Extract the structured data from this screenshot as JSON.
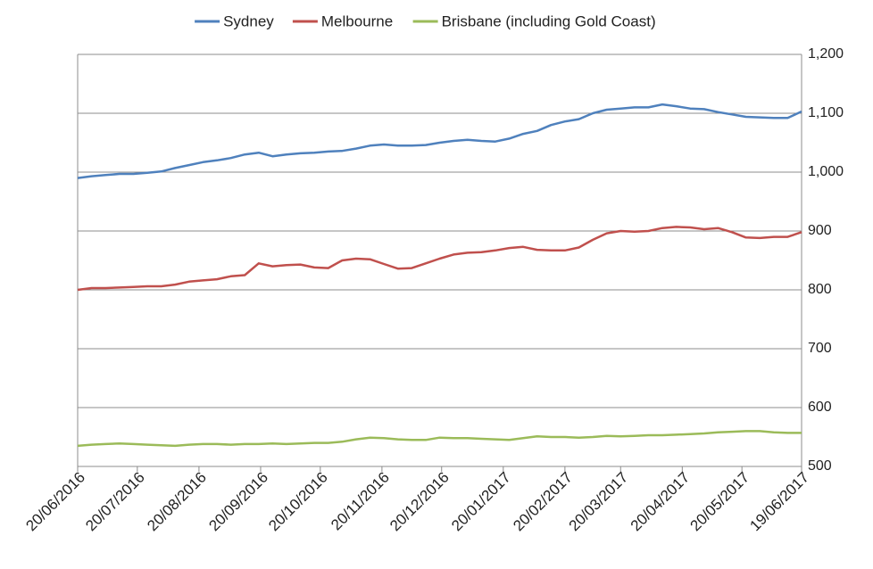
{
  "chart_data": {
    "type": "line",
    "x": [
      "20/06/2016",
      "27/06/2016",
      "04/07/2016",
      "11/07/2016",
      "18/07/2016",
      "25/07/2016",
      "01/08/2016",
      "08/08/2016",
      "15/08/2016",
      "22/08/2016",
      "29/08/2016",
      "05/09/2016",
      "12/09/2016",
      "19/09/2016",
      "26/09/2016",
      "03/10/2016",
      "10/10/2016",
      "17/10/2016",
      "24/10/2016",
      "31/10/2016",
      "07/11/2016",
      "14/11/2016",
      "21/11/2016",
      "28/11/2016",
      "05/12/2016",
      "12/12/2016",
      "19/12/2016",
      "26/12/2016",
      "02/01/2017",
      "09/01/2017",
      "16/01/2017",
      "23/01/2017",
      "30/01/2017",
      "06/02/2017",
      "13/02/2017",
      "20/02/2017",
      "27/02/2017",
      "06/03/2017",
      "13/03/2017",
      "20/03/2017",
      "27/03/2017",
      "03/04/2017",
      "10/04/2017",
      "17/04/2017",
      "24/04/2017",
      "01/05/2017",
      "08/05/2017",
      "15/05/2017",
      "22/05/2017",
      "29/05/2017",
      "05/06/2017",
      "12/06/2017",
      "19/06/2017"
    ],
    "series": [
      {
        "name": "Sydney",
        "color": "#4f81bd",
        "values": [
          990,
          993,
          995,
          997,
          997,
          999,
          1001,
          1007,
          1012,
          1017,
          1020,
          1024,
          1030,
          1033,
          1027,
          1030,
          1032,
          1033,
          1035,
          1036,
          1040,
          1045,
          1047,
          1045,
          1045,
          1046,
          1050,
          1053,
          1055,
          1053,
          1052,
          1057,
          1065,
          1070,
          1080,
          1086,
          1090,
          1100,
          1106,
          1108,
          1110,
          1110,
          1115,
          1112,
          1108,
          1107,
          1102,
          1098,
          1094,
          1093,
          1092,
          1092,
          1103
        ]
      },
      {
        "name": "Melbourne",
        "color": "#c0504d",
        "values": [
          800,
          803,
          803,
          804,
          805,
          806,
          806,
          809,
          814,
          816,
          818,
          823,
          825,
          845,
          840,
          842,
          843,
          838,
          837,
          850,
          853,
          852,
          844,
          836,
          837,
          845,
          853,
          860,
          863,
          864,
          867,
          871,
          873,
          868,
          867,
          867,
          872,
          885,
          896,
          900,
          899,
          900,
          905,
          907,
          906,
          903,
          905,
          898,
          889,
          888,
          890,
          890,
          898
        ]
      },
      {
        "name": "Brisbane (including Gold Coast)",
        "color": "#9bbb59",
        "values": [
          535,
          537,
          538,
          539,
          538,
          537,
          536,
          535,
          537,
          538,
          538,
          537,
          538,
          538,
          539,
          538,
          539,
          540,
          540,
          542,
          546,
          549,
          548,
          546,
          545,
          545,
          549,
          548,
          548,
          547,
          546,
          545,
          548,
          551,
          550,
          550,
          549,
          550,
          552,
          551,
          552,
          553,
          553,
          554,
          555,
          556,
          558,
          559,
          560,
          560,
          558,
          557,
          557
        ]
      }
    ],
    "xlim": [
      "20/06/2016",
      "19/06/2017"
    ],
    "xticks": [
      "20/06/2016",
      "20/07/2016",
      "20/08/2016",
      "20/09/2016",
      "20/10/2016",
      "20/11/2016",
      "20/12/2016",
      "20/01/2017",
      "20/02/2017",
      "20/03/2017",
      "20/04/2017",
      "20/05/2017",
      "19/06/2017"
    ],
    "ylim": [
      500,
      1200
    ],
    "yticks": [
      500,
      600,
      700,
      800,
      900,
      {
        "value": 1000,
        "label": "1,000"
      },
      {
        "value": 1100,
        "label": "1,100"
      },
      {
        "value": 1200,
        "label": "1,200"
      }
    ],
    "grid": true,
    "legend": "top"
  }
}
